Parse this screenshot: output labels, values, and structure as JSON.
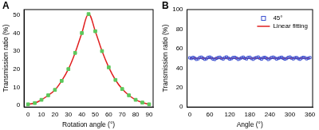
{
  "chart_data": [
    {
      "type": "line",
      "panel": "A",
      "x_label": "Rotation angle (°)",
      "y_label": "Transmission ratio (%)",
      "xlim": [
        -3,
        93
      ],
      "xticks": [
        0,
        10,
        20,
        30,
        40,
        50,
        60,
        70,
        80,
        90
      ],
      "ylim": [
        -1,
        53
      ],
      "yticks": [
        0,
        10,
        20,
        30,
        40,
        50
      ],
      "grid": false,
      "series": [
        {
          "type": "line",
          "color": "#e02020",
          "marker": "none",
          "line_style": "solid",
          "x": [
            0,
            5,
            10,
            15,
            20,
            25,
            30,
            35,
            40,
            45,
            50,
            55,
            60,
            65,
            70,
            75,
            80,
            85,
            90
          ],
          "values": [
            0.5,
            1.2,
            3.0,
            5.5,
            8.5,
            13.5,
            20.0,
            29.0,
            40.0,
            50.5,
            41.0,
            30.0,
            21.0,
            14.0,
            9.0,
            5.5,
            3.0,
            1.5,
            0.5
          ]
        },
        {
          "type": "scatter",
          "color": "#5cc85c",
          "marker": "square",
          "x": [
            0,
            5,
            10,
            15,
            20,
            25,
            30,
            35,
            40,
            45,
            50,
            55,
            60,
            65,
            70,
            75,
            80,
            85,
            90
          ],
          "values": [
            0.5,
            1.2,
            3.0,
            5.5,
            8.5,
            13.5,
            20.0,
            29.0,
            40.0,
            50.5,
            41.0,
            30.0,
            21.0,
            14.0,
            9.0,
            5.5,
            3.0,
            1.5,
            0.5
          ]
        }
      ]
    },
    {
      "type": "scatter",
      "panel": "B",
      "x_label": "Angle (°)",
      "y_label": "Transmission ratio (%)",
      "xlim": [
        -8,
        368
      ],
      "xticks": [
        0,
        60,
        120,
        180,
        240,
        300,
        360
      ],
      "ylim": [
        0,
        100
      ],
      "yticks": [
        0,
        20,
        40,
        60,
        80,
        100
      ],
      "grid": false,
      "legend": "upper right",
      "series": [
        {
          "name": "45°",
          "type": "scatter",
          "color": "#3a4fd0",
          "marker": "square-open",
          "x": [
            0,
            5,
            10,
            15,
            20,
            25,
            30,
            35,
            40,
            45,
            50,
            55,
            60,
            65,
            70,
            75,
            80,
            85,
            90,
            95,
            100,
            105,
            110,
            115,
            120,
            125,
            130,
            135,
            140,
            145,
            150,
            155,
            160,
            165,
            170,
            175,
            180,
            185,
            190,
            195,
            200,
            205,
            210,
            215,
            220,
            225,
            230,
            235,
            240,
            245,
            250,
            255,
            260,
            265,
            270,
            275,
            280,
            285,
            290,
            295,
            300,
            305,
            310,
            315,
            320,
            325,
            330,
            335,
            340,
            345,
            350,
            355,
            360
          ],
          "values": [
            50.5,
            49.8,
            51.0,
            50.2,
            48.9,
            49.5,
            50.8,
            51.2,
            50.1,
            49.0,
            49.6,
            50.9,
            51.3,
            50.4,
            49.2,
            48.8,
            50.0,
            50.7,
            51.1,
            49.9,
            49.3,
            50.6,
            51.4,
            50.3,
            49.1,
            49.7,
            50.8,
            51.0,
            50.2,
            48.9,
            49.6,
            50.5,
            51.2,
            50.0,
            49.4,
            50.9,
            51.1,
            49.8,
            49.0,
            50.3,
            50.7,
            51.3,
            49.9,
            49.2,
            50.6,
            51.0,
            50.1,
            48.8,
            49.7,
            50.8,
            51.2,
            50.4,
            49.3,
            49.9,
            50.6,
            51.1,
            50.0,
            49.1,
            49.8,
            50.9,
            51.3,
            50.2,
            49.4,
            50.5,
            50.8,
            49.7,
            49.0,
            50.3,
            51.0,
            50.6,
            49.5,
            50.1,
            50.7
          ]
        },
        {
          "name": "Linear fitting",
          "type": "line",
          "color": "#e02020",
          "marker": "none",
          "line_style": "solid",
          "x": [
            0,
            360
          ],
          "values": [
            50,
            50
          ]
        }
      ]
    }
  ]
}
